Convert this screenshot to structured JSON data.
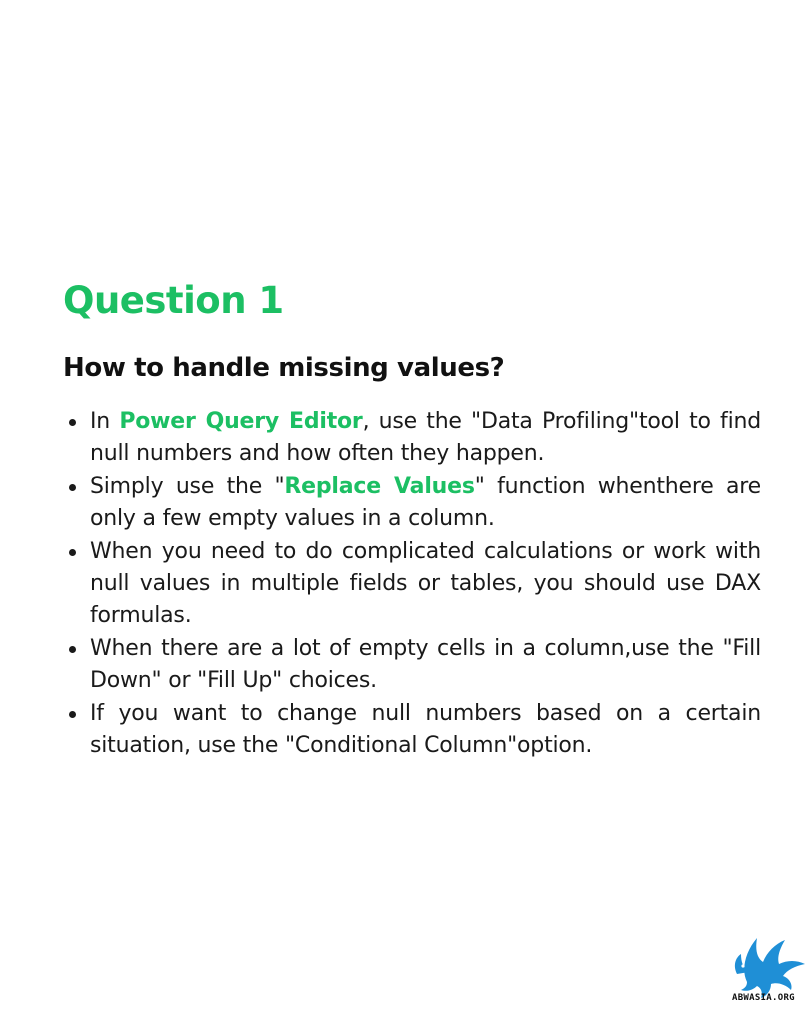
{
  "title": "Question 1",
  "subtitle": "How to handle missing values?",
  "colors": {
    "accent": "#1cbf63",
    "text": "#111111",
    "logo_blue": "#1f8fd6"
  },
  "bullets": [
    {
      "before": "In ",
      "highlight": "Power Query Editor",
      "after": ", use the \"Data Profiling\"tool to find null numbers and how often they happen."
    },
    {
      "before": "Simply use the \"",
      "highlight": "Replace Values",
      "after": "\" function whenthere are only a few empty values in a column."
    },
    {
      "text": "When you need to do complicated calculations or work with null values in multiple fields or tables, you should use DAX formulas."
    },
    {
      "text": "When there are a lot of empty cells in a column,use the \"Fill Down\" or \"Fill Up\" choices."
    },
    {
      "text": "If you want to change null numbers based on a certain situation, use the \"Conditional Column\"option."
    }
  ],
  "logo": {
    "icon": "bird-logo-icon",
    "text": "ABWASIA.ORG"
  }
}
